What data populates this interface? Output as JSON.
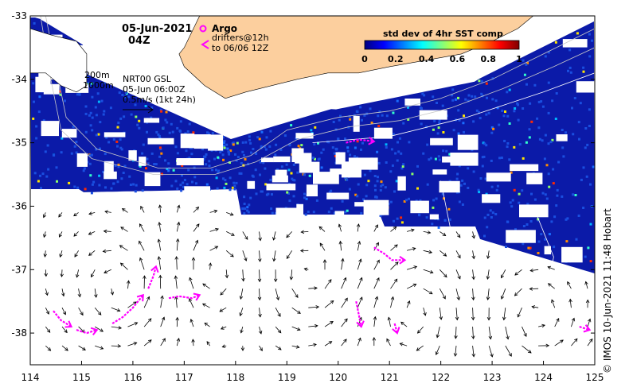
{
  "title": {
    "date": "05-Jun-2021",
    "time": "04Z"
  },
  "legend": {
    "argo_label": "Argo",
    "drifters_line1": "drifters@12h",
    "drifters_line2": "to 06/06 12Z",
    "argo_color": "#ff00ff",
    "drifter_color": "#ff00ff"
  },
  "bathymetry_labels": [
    "200m",
    "1000m"
  ],
  "current_info": {
    "line1": "NRT00 GSL",
    "line2": "05-Jun 06:00Z",
    "line3": "0.5m/s (1kt 24h)"
  },
  "colorbar": {
    "title": "std dev of 4hr SST comp",
    "ticks": [
      "0",
      "0.2",
      "0.4",
      "0.6",
      "0.8",
      "1"
    ],
    "colors": [
      "#00007f",
      "#0000ff",
      "#0080ff",
      "#00ffff",
      "#80ff80",
      "#ffff00",
      "#ff8000",
      "#ff0000",
      "#7f0000"
    ]
  },
  "credit": "© IMOS 10-Jun-2021 11:48 Hobart",
  "axes": {
    "x_ticks": [
      "114",
      "115",
      "116",
      "117",
      "118",
      "119",
      "120",
      "121",
      "122",
      "123",
      "124",
      "125"
    ],
    "y_ticks": [
      "-33",
      "-34",
      "-35",
      "-36",
      "-37",
      "-38"
    ],
    "xlim": [
      114,
      125
    ],
    "ylim": [
      -38.5,
      -33
    ],
    "xlabel": "",
    "ylabel": ""
  },
  "colors": {
    "land": "#fccf9e",
    "sst_background": "#0b1aa8",
    "frame": "#000000"
  },
  "features": {
    "coastline": [
      [
        117.3,
        -33
      ],
      [
        117.0,
        -33.5
      ],
      [
        116.9,
        -33.6
      ],
      [
        117.0,
        -33.8
      ],
      [
        117.4,
        -34.1
      ],
      [
        117.8,
        -34.3
      ],
      [
        118.2,
        -34.2
      ],
      [
        118.7,
        -34.1
      ],
      [
        119.2,
        -34.0
      ],
      [
        119.8,
        -33.9
      ],
      [
        120.4,
        -33.9
      ],
      [
        121.0,
        -33.8
      ],
      [
        121.7,
        -33.7
      ],
      [
        122.4,
        -33.6
      ],
      [
        123.0,
        -33.4
      ],
      [
        123.5,
        -33.2
      ],
      [
        123.8,
        -33
      ]
    ],
    "cape_leeuwin": [
      [
        114.0,
        -33.2
      ],
      [
        114.4,
        -33.3
      ],
      [
        114.9,
        -33.4
      ],
      [
        115.1,
        -33.6
      ],
      [
        115.1,
        -34.1
      ],
      [
        114.9,
        -34.2
      ],
      [
        114.6,
        -34.1
      ],
      [
        114.3,
        -33.9
      ],
      [
        114.0,
        -33.9
      ]
    ]
  }
}
